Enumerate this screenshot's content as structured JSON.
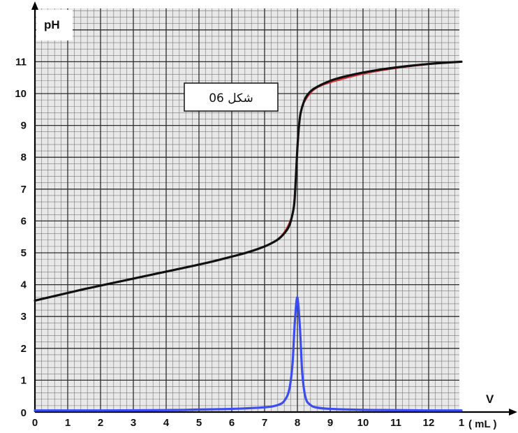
{
  "chart_data": {
    "type": "line",
    "title": "",
    "caption": "شكل 06",
    "ylabel": "pH",
    "xlabel": "V",
    "x_unit": "( mL )",
    "x_ticks": [
      "0",
      "1",
      "2",
      "3",
      "4",
      "5",
      "6",
      "7",
      "8",
      "9",
      "10",
      "11",
      "12",
      "1"
    ],
    "y_ticks": [
      "0",
      "1",
      "2",
      "3",
      "4",
      "5",
      "6",
      "7",
      "8",
      "9",
      "10",
      "11"
    ],
    "xlim": [
      0,
      13
    ],
    "ylim": [
      0,
      12.6
    ],
    "grid": true,
    "colors": {
      "grid_major": "#2b2b2b",
      "grid_minor": "#777777",
      "background": "#e8e8e8",
      "ph_curve": "#111111",
      "model_curve": "#e0303a",
      "derivative_curve": "#3a4cf2"
    },
    "series": [
      {
        "role": "ph_curve",
        "x": [
          0,
          0.5,
          1,
          1.5,
          2,
          2.5,
          3,
          3.5,
          4,
          4.5,
          5,
          5.5,
          6,
          6.5,
          7,
          7.3,
          7.5,
          7.7,
          7.8,
          7.9,
          7.95,
          8.0,
          8.05,
          8.1,
          8.2,
          8.3,
          8.5,
          9,
          9.5,
          10,
          10.5,
          11,
          11.5,
          12,
          12.5,
          13
        ],
        "y": [
          3.5,
          3.62,
          3.74,
          3.86,
          3.97,
          4.08,
          4.19,
          4.3,
          4.41,
          4.52,
          4.63,
          4.75,
          4.88,
          5.02,
          5.2,
          5.35,
          5.5,
          5.75,
          6.0,
          6.5,
          7.3,
          8.3,
          9.0,
          9.4,
          9.75,
          9.95,
          10.15,
          10.4,
          10.55,
          10.66,
          10.75,
          10.82,
          10.88,
          10.93,
          10.97,
          11.0
        ]
      },
      {
        "role": "model_curve",
        "x": [
          0,
          1,
          2,
          3,
          4,
          5,
          6,
          7,
          7.5,
          7.8,
          7.9,
          8.0,
          8.05,
          8.1,
          8.2,
          8.5,
          9,
          10,
          11,
          12,
          13
        ],
        "y": [
          3.5,
          3.74,
          3.97,
          4.19,
          4.41,
          4.63,
          4.88,
          5.2,
          5.52,
          6.05,
          6.6,
          8.2,
          8.95,
          9.38,
          9.72,
          10.12,
          10.35,
          10.62,
          10.8,
          10.92,
          11.0
        ]
      },
      {
        "role": "derivative_curve",
        "x": [
          0,
          2,
          4,
          5,
          6,
          7,
          7.4,
          7.6,
          7.75,
          7.85,
          7.92,
          8.0,
          8.08,
          8.15,
          8.25,
          8.4,
          8.6,
          9,
          10,
          11,
          12,
          13
        ],
        "y": [
          0.05,
          0.05,
          0.06,
          0.08,
          0.1,
          0.15,
          0.22,
          0.35,
          0.7,
          1.5,
          2.8,
          3.6,
          2.6,
          1.2,
          0.45,
          0.22,
          0.14,
          0.1,
          0.07,
          0.06,
          0.05,
          0.05
        ]
      }
    ]
  }
}
